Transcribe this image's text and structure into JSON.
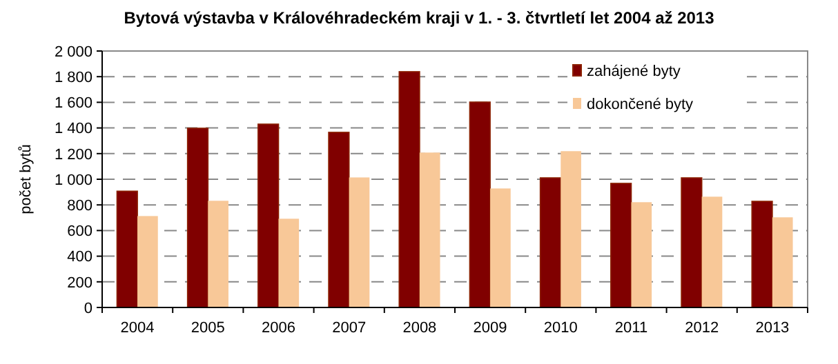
{
  "chart_data": {
    "type": "bar",
    "title": "Bytová výstavba v Královéhradeckém kraji v 1. - 3. čtvrtletí let 2004 až 2013",
    "ylabel": "počet bytů",
    "categories": [
      "2004",
      "2005",
      "2006",
      "2007",
      "2008",
      "2009",
      "2010",
      "2011",
      "2012",
      "2013"
    ],
    "series": [
      {
        "name": "zahájené byty",
        "color": "#800000",
        "values": [
          907,
          1398,
          1430,
          1366,
          1839,
          1602,
          1011,
          968,
          1011,
          828
        ]
      },
      {
        "name": "dokončené byty",
        "color": "#f8c898",
        "values": [
          713,
          832,
          692,
          1014,
          1208,
          928,
          1219,
          821,
          864,
          703
        ]
      }
    ],
    "ylim": [
      0,
      2000
    ],
    "yticks": [
      {
        "value": 0,
        "label": "0"
      },
      {
        "value": 200,
        "label": "200"
      },
      {
        "value": 400,
        "label": "400"
      },
      {
        "value": 600,
        "label": "600"
      },
      {
        "value": 800,
        "label": "800"
      },
      {
        "value": 1000,
        "label": "1 000"
      },
      {
        "value": 1200,
        "label": "1 200"
      },
      {
        "value": 1400,
        "label": "1 400"
      },
      {
        "value": 1600,
        "label": "1 600"
      },
      {
        "value": 1800,
        "label": "1 800"
      },
      {
        "value": 2000,
        "label": "2 000"
      }
    ],
    "grid": "y",
    "legend": "top right"
  }
}
